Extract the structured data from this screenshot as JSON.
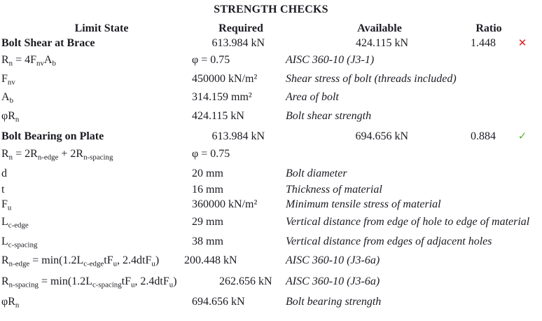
{
  "title": "STRENGTH CHECKS",
  "columns": {
    "limit_state": "Limit State",
    "required": "Required",
    "available": "Available",
    "ratio": "Ratio"
  },
  "colors": {
    "text": "#1b1b22",
    "fail": "#e02127",
    "pass": "#53b52b"
  },
  "icons": {
    "fail": "✕",
    "pass": "✓"
  },
  "rows": [
    {
      "kind": "check",
      "label": "Bolt Shear at Brace",
      "required": "613.984 kN",
      "available": "424.115 kN",
      "ratio": "1.448",
      "status": "fail"
    },
    {
      "kind": "detail",
      "formula": [
        {
          "t": "R"
        },
        {
          "t": "n",
          "sub": true
        },
        {
          "t": " = 4F"
        },
        {
          "t": "nv",
          "sub": true
        },
        {
          "t": "A"
        },
        {
          "t": "b",
          "sub": true
        }
      ],
      "value": "φ = 0.75",
      "note": "AISC 360-10 (J3-1)"
    },
    {
      "kind": "detail",
      "formula": [
        {
          "t": "F"
        },
        {
          "t": "nv",
          "sub": true
        }
      ],
      "value": "450000 kN/m²",
      "note": "Shear stress of bolt (threads included)"
    },
    {
      "kind": "detail",
      "formula": [
        {
          "t": "A"
        },
        {
          "t": "b",
          "sub": true
        }
      ],
      "value": "314.159 mm²",
      "note": "Area of bolt"
    },
    {
      "kind": "detail",
      "formula": [
        {
          "t": "φR"
        },
        {
          "t": "n",
          "sub": true
        }
      ],
      "value": "424.115 kN",
      "note": "Bolt shear strength"
    },
    {
      "kind": "check",
      "label": "Bolt Bearing on Plate",
      "required": "613.984 kN",
      "available": "694.656 kN",
      "ratio": "0.884",
      "status": "pass"
    },
    {
      "kind": "detail",
      "formula": [
        {
          "t": "R"
        },
        {
          "t": "n",
          "sub": true
        },
        {
          "t": " = 2R"
        },
        {
          "t": "n-edge",
          "sub": true
        },
        {
          "t": " + 2R"
        },
        {
          "t": "n-spacing",
          "sub": true
        }
      ],
      "value": "φ = 0.75",
      "note": ""
    },
    {
      "kind": "detail",
      "formula": [
        {
          "t": "d"
        }
      ],
      "value": "20 mm",
      "note": "Bolt diameter"
    },
    {
      "kind": "detail",
      "formula": [
        {
          "t": "t"
        }
      ],
      "value": "16 mm",
      "note": "Thickness of material"
    },
    {
      "kind": "detail",
      "formula": [
        {
          "t": "F"
        },
        {
          "t": "u",
          "sub": true
        }
      ],
      "value": "360000 kN/m²",
      "note": "Minimum tensile stress of material"
    },
    {
      "kind": "detail",
      "formula": [
        {
          "t": "L"
        },
        {
          "t": "c-edge",
          "sub": true
        }
      ],
      "value": "29 mm",
      "note": "Vertical distance from edge of hole to edge of material"
    },
    {
      "kind": "detail",
      "formula": [
        {
          "t": "L"
        },
        {
          "t": "c-spacing",
          "sub": true
        }
      ],
      "value": "38 mm",
      "note": "Vertical distance from edges of adjacent holes"
    },
    {
      "kind": "detail",
      "formula": [
        {
          "t": "R"
        },
        {
          "t": "n-edge",
          "sub": true
        },
        {
          "t": " = min(1.2L"
        },
        {
          "t": "c-edge",
          "sub": true
        },
        {
          "t": "tF"
        },
        {
          "t": "u",
          "sub": true
        },
        {
          "t": ", 2.4dtF"
        },
        {
          "t": "u",
          "sub": true
        },
        {
          "t": ")"
        }
      ],
      "value": "200.448 kN",
      "note": "AISC 360-10 (J3-6a)"
    },
    {
      "kind": "detail",
      "formula": [
        {
          "t": "R"
        },
        {
          "t": "n-spacing",
          "sub": true
        },
        {
          "t": " = min(1.2L"
        },
        {
          "t": "c-spacing",
          "sub": true
        },
        {
          "t": "tF"
        },
        {
          "t": "u",
          "sub": true
        },
        {
          "t": ", 2.4dtF"
        },
        {
          "t": "u",
          "sub": true
        },
        {
          "t": ")"
        }
      ],
      "value": "262.656 kN",
      "note": "AISC 360-10 (J3-6a)"
    },
    {
      "kind": "detail",
      "formula": [
        {
          "t": "φR"
        },
        {
          "t": "n",
          "sub": true
        }
      ],
      "value": "694.656 kN",
      "note": "Bolt bearing strength"
    }
  ]
}
